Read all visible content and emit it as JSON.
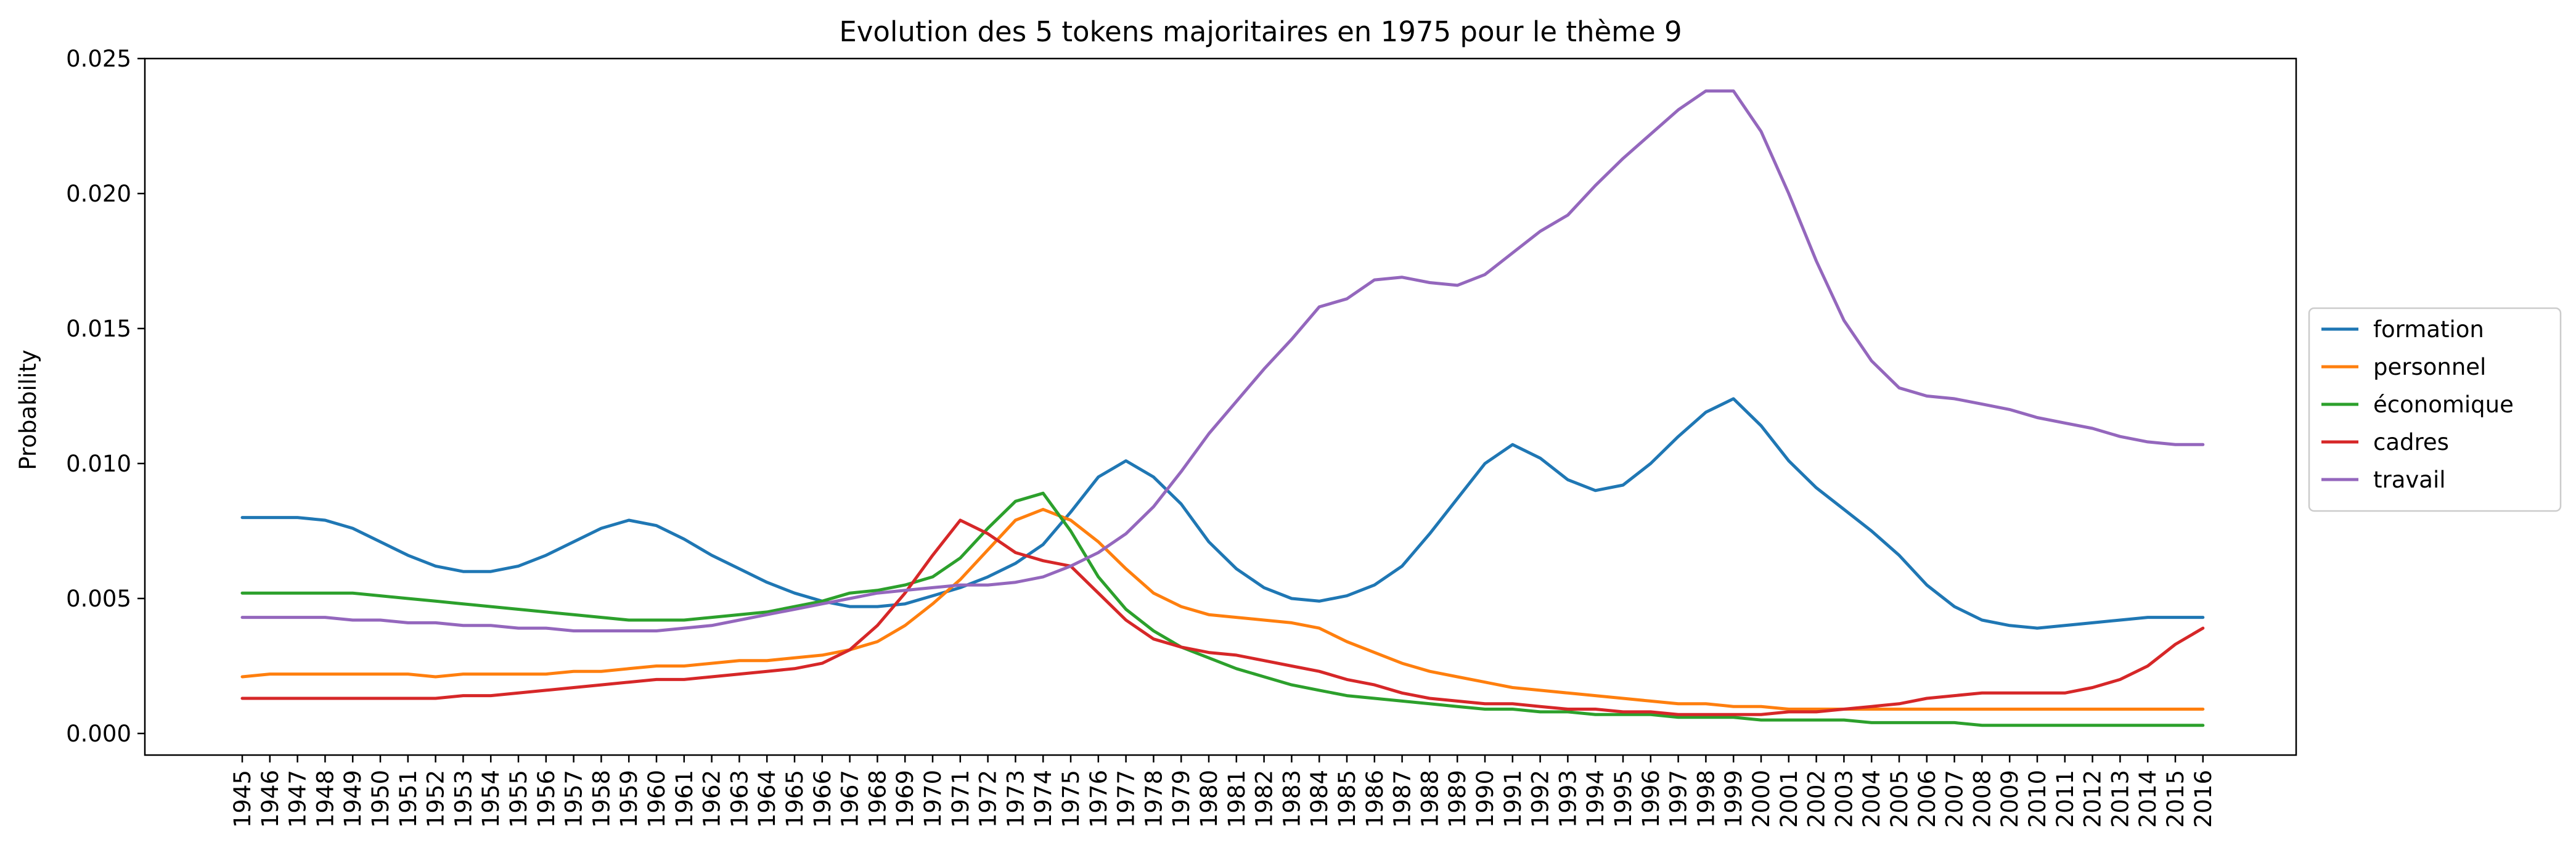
{
  "chart_data": {
    "type": "line",
    "title": "Evolution des 5 tokens majoritaires en 1975 pour le thème 9",
    "xlabel": "",
    "ylabel": "Probability",
    "ylim": [
      -0.0008,
      0.025
    ],
    "yticks": [
      "0.000",
      "0.005",
      "0.010",
      "0.015",
      "0.020",
      "0.025"
    ],
    "legend_position": "center-right",
    "grid": false,
    "x": [
      "1945",
      "1946",
      "1947",
      "1948",
      "1949",
      "1950",
      "1951",
      "1952",
      "1953",
      "1954",
      "1955",
      "1956",
      "1957",
      "1958",
      "1959",
      "1960",
      "1961",
      "1962",
      "1963",
      "1964",
      "1965",
      "1966",
      "1967",
      "1968",
      "1969",
      "1970",
      "1971",
      "1972",
      "1973",
      "1974",
      "1975",
      "1976",
      "1977",
      "1978",
      "1979",
      "1980",
      "1981",
      "1982",
      "1983",
      "1984",
      "1985",
      "1986",
      "1987",
      "1988",
      "1989",
      "1990",
      "1991",
      "1992",
      "1993",
      "1994",
      "1995",
      "1996",
      "1997",
      "1998",
      "1999",
      "2000",
      "2001",
      "2002",
      "2003",
      "2004",
      "2005",
      "2006",
      "2007",
      "2008",
      "2009",
      "2010",
      "2011",
      "2012",
      "2013",
      "2014",
      "2015",
      "2016"
    ],
    "series": [
      {
        "name": "formation",
        "color": "#1f77b4",
        "values": [
          0.008,
          0.008,
          0.008,
          0.0079,
          0.0076,
          0.0071,
          0.0066,
          0.0062,
          0.006,
          0.006,
          0.0062,
          0.0066,
          0.0071,
          0.0076,
          0.0079,
          0.0077,
          0.0072,
          0.0066,
          0.0061,
          0.0056,
          0.0052,
          0.0049,
          0.0047,
          0.0047,
          0.0048,
          0.0051,
          0.0054,
          0.0058,
          0.0063,
          0.007,
          0.0082,
          0.0095,
          0.0101,
          0.0095,
          0.0085,
          0.0071,
          0.0061,
          0.0054,
          0.005,
          0.0049,
          0.0051,
          0.0055,
          0.0062,
          0.0074,
          0.0087,
          0.01,
          0.0107,
          0.0102,
          0.0094,
          0.009,
          0.0092,
          0.01,
          0.011,
          0.0119,
          0.0124,
          0.0114,
          0.0101,
          0.0091,
          0.0083,
          0.0075,
          0.0066,
          0.0055,
          0.0047,
          0.0042,
          0.004,
          0.0039,
          0.004,
          0.0041,
          0.0042,
          0.0043,
          0.0043,
          0.0043
        ]
      },
      {
        "name": "personnel",
        "color": "#ff7f0e",
        "values": [
          0.0021,
          0.0022,
          0.0022,
          0.0022,
          0.0022,
          0.0022,
          0.0022,
          0.0021,
          0.0022,
          0.0022,
          0.0022,
          0.0022,
          0.0023,
          0.0023,
          0.0024,
          0.0025,
          0.0025,
          0.0026,
          0.0027,
          0.0027,
          0.0028,
          0.0029,
          0.0031,
          0.0034,
          0.004,
          0.0048,
          0.0057,
          0.0068,
          0.0079,
          0.0083,
          0.0079,
          0.0071,
          0.0061,
          0.0052,
          0.0047,
          0.0044,
          0.0043,
          0.0042,
          0.0041,
          0.0039,
          0.0034,
          0.003,
          0.0026,
          0.0023,
          0.0021,
          0.0019,
          0.0017,
          0.0016,
          0.0015,
          0.0014,
          0.0013,
          0.0012,
          0.0011,
          0.0011,
          0.001,
          0.001,
          0.0009,
          0.0009,
          0.0009,
          0.0009,
          0.0009,
          0.0009,
          0.0009,
          0.0009,
          0.0009,
          0.0009,
          0.0009,
          0.0009,
          0.0009,
          0.0009,
          0.0009,
          0.0009
        ]
      },
      {
        "name": "économique",
        "color": "#2ca02c",
        "values": [
          0.0052,
          0.0052,
          0.0052,
          0.0052,
          0.0052,
          0.0051,
          0.005,
          0.0049,
          0.0048,
          0.0047,
          0.0046,
          0.0045,
          0.0044,
          0.0043,
          0.0042,
          0.0042,
          0.0042,
          0.0043,
          0.0044,
          0.0045,
          0.0047,
          0.0049,
          0.0052,
          0.0053,
          0.0055,
          0.0058,
          0.0065,
          0.0076,
          0.0086,
          0.0089,
          0.0075,
          0.0058,
          0.0046,
          0.0038,
          0.0032,
          0.0028,
          0.0024,
          0.0021,
          0.0018,
          0.0016,
          0.0014,
          0.0013,
          0.0012,
          0.0011,
          0.001,
          0.0009,
          0.0009,
          0.0008,
          0.0008,
          0.0007,
          0.0007,
          0.0007,
          0.0006,
          0.0006,
          0.0006,
          0.0005,
          0.0005,
          0.0005,
          0.0005,
          0.0004,
          0.0004,
          0.0004,
          0.0004,
          0.0003,
          0.0003,
          0.0003,
          0.0003,
          0.0003,
          0.0003,
          0.0003,
          0.0003,
          0.0003
        ]
      },
      {
        "name": "cadres",
        "color": "#d62728",
        "values": [
          0.0013,
          0.0013,
          0.0013,
          0.0013,
          0.0013,
          0.0013,
          0.0013,
          0.0013,
          0.0014,
          0.0014,
          0.0015,
          0.0016,
          0.0017,
          0.0018,
          0.0019,
          0.002,
          0.002,
          0.0021,
          0.0022,
          0.0023,
          0.0024,
          0.0026,
          0.0031,
          0.004,
          0.0052,
          0.0066,
          0.0079,
          0.0074,
          0.0067,
          0.0064,
          0.0062,
          0.0052,
          0.0042,
          0.0035,
          0.0032,
          0.003,
          0.0029,
          0.0027,
          0.0025,
          0.0023,
          0.002,
          0.0018,
          0.0015,
          0.0013,
          0.0012,
          0.0011,
          0.0011,
          0.001,
          0.0009,
          0.0009,
          0.0008,
          0.0008,
          0.0007,
          0.0007,
          0.0007,
          0.0007,
          0.0008,
          0.0008,
          0.0009,
          0.001,
          0.0011,
          0.0013,
          0.0014,
          0.0015,
          0.0015,
          0.0015,
          0.0015,
          0.0017,
          0.002,
          0.0025,
          0.0033,
          0.0039
        ]
      },
      {
        "name": "travail",
        "color": "#9467bd",
        "values": [
          0.0043,
          0.0043,
          0.0043,
          0.0043,
          0.0042,
          0.0042,
          0.0041,
          0.0041,
          0.004,
          0.004,
          0.0039,
          0.0039,
          0.0038,
          0.0038,
          0.0038,
          0.0038,
          0.0039,
          0.004,
          0.0042,
          0.0044,
          0.0046,
          0.0048,
          0.005,
          0.0052,
          0.0053,
          0.0054,
          0.0055,
          0.0055,
          0.0056,
          0.0058,
          0.0062,
          0.0067,
          0.0074,
          0.0084,
          0.0097,
          0.0111,
          0.0123,
          0.0135,
          0.0146,
          0.0158,
          0.0161,
          0.0168,
          0.0169,
          0.0167,
          0.0166,
          0.017,
          0.0178,
          0.0186,
          0.0192,
          0.0203,
          0.0213,
          0.0222,
          0.0231,
          0.0238,
          0.0238,
          0.0223,
          0.02,
          0.0175,
          0.0153,
          0.0138,
          0.0128,
          0.0125,
          0.0124,
          0.0122,
          0.012,
          0.0117,
          0.0115,
          0.0113,
          0.011,
          0.0108,
          0.0107,
          0.0107
        ]
      }
    ]
  }
}
